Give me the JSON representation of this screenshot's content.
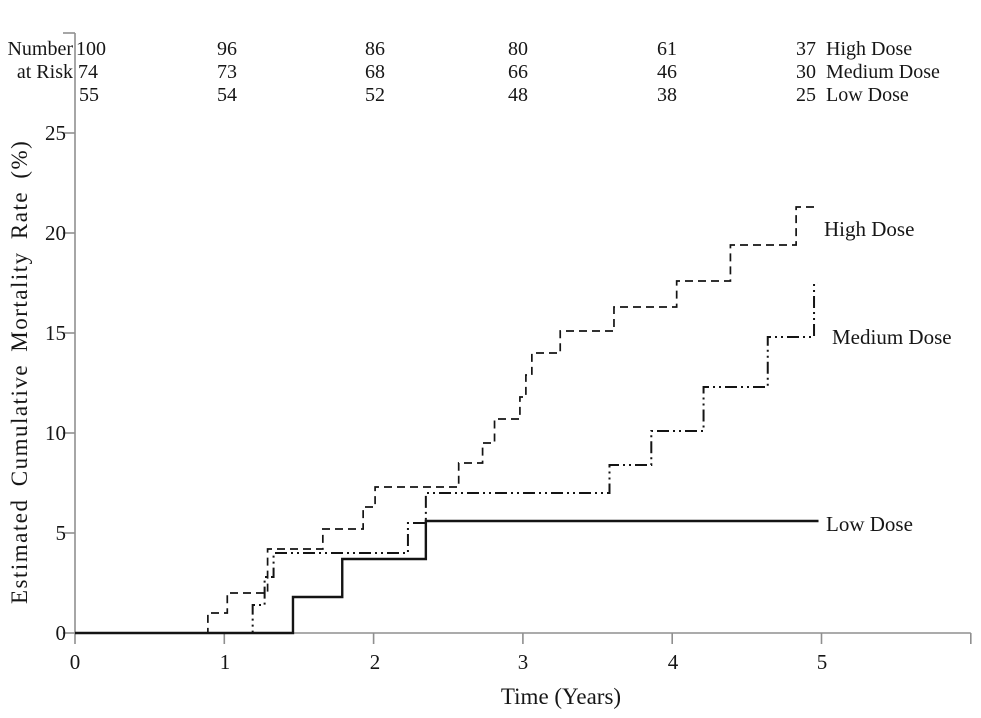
{
  "chart_data": {
    "type": "line",
    "subtype": "kaplan-meier-step",
    "title": "",
    "xlabel": "Time (Years)",
    "ylabel": "Estimated Cumulative Mortality Rate (%)",
    "xlim": [
      0,
      6
    ],
    "ylim": [
      0,
      30
    ],
    "grid": false,
    "legend_position": "right-of-curves",
    "axis_color": "#8f8f8f",
    "line_color": "#141414",
    "xticks": [
      0,
      1,
      2,
      3,
      4,
      5,
      6
    ],
    "xtick_labels": [
      "0",
      "1",
      "2",
      "3",
      "4",
      "5"
    ],
    "yticks": [
      0,
      5,
      10,
      15,
      20,
      25,
      30
    ],
    "ytick_labels": [
      "0",
      "5",
      "10",
      "15",
      "20",
      "25"
    ],
    "series": [
      {
        "name": "High Dose",
        "line_style": "dashed",
        "points": [
          [
            0,
            0
          ],
          [
            0.89,
            1.0
          ],
          [
            1.02,
            2.0
          ],
          [
            1.29,
            4.2
          ],
          [
            1.66,
            5.2
          ],
          [
            1.93,
            6.3
          ],
          [
            2.01,
            7.3
          ],
          [
            2.57,
            8.5
          ],
          [
            2.73,
            9.5
          ],
          [
            2.81,
            10.7
          ],
          [
            2.98,
            11.8
          ],
          [
            3.02,
            12.9
          ],
          [
            3.06,
            14.0
          ],
          [
            3.25,
            15.1
          ],
          [
            3.61,
            16.3
          ],
          [
            4.03,
            17.6
          ],
          [
            4.39,
            19.4
          ],
          [
            4.83,
            21.3
          ]
        ],
        "end_time": 4.98
      },
      {
        "name": "Medium Dose",
        "line_style": "dash-dot-dot",
        "points": [
          [
            0,
            0
          ],
          [
            1.19,
            1.4
          ],
          [
            1.27,
            2.8
          ],
          [
            1.33,
            4.0
          ],
          [
            2.23,
            5.5
          ],
          [
            2.35,
            7.0
          ],
          [
            3.58,
            8.4
          ],
          [
            3.86,
            10.1
          ],
          [
            4.21,
            12.3
          ],
          [
            4.64,
            14.8
          ],
          [
            4.95,
            17.5
          ]
        ],
        "end_time": 4.97
      },
      {
        "name": "Low Dose",
        "line_style": "solid",
        "points": [
          [
            0,
            0
          ],
          [
            1.46,
            1.8
          ],
          [
            1.79,
            3.7
          ],
          [
            2.35,
            5.6
          ]
        ],
        "end_time": 4.98
      }
    ],
    "number_at_risk": {
      "header_line1": "Number",
      "header_line2": "at Risk",
      "times": [
        0,
        1,
        2,
        3,
        4,
        5
      ],
      "rows": [
        {
          "label": "High Dose",
          "counts": [
            "100",
            "96",
            "86",
            "80",
            "61",
            "37"
          ]
        },
        {
          "label": "Medium Dose",
          "counts": [
            "74",
            "73",
            "68",
            "66",
            "46",
            "30"
          ]
        },
        {
          "label": "Low Dose",
          "counts": [
            "55",
            "54",
            "52",
            "48",
            "38",
            "25"
          ]
        }
      ]
    }
  }
}
